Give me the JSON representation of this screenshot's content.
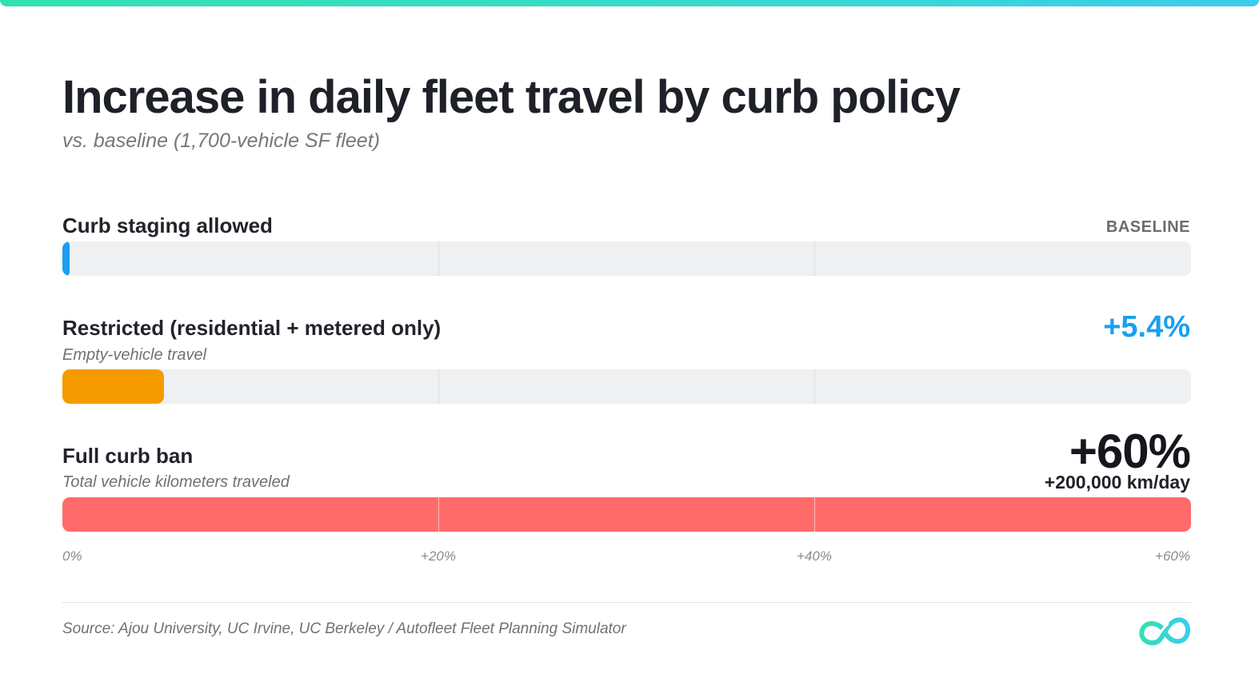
{
  "title": "Increase in daily fleet travel by curb policy",
  "subtitle": "vs. baseline (1,700-vehicle SF fleet)",
  "chart_data": {
    "type": "bar",
    "orientation": "horizontal",
    "title": "Increase in daily fleet travel by curb policy",
    "subtitle": "vs. baseline (1,700-vehicle SF fleet)",
    "xlim": [
      0,
      60
    ],
    "ticks": [
      {
        "value": 0,
        "label": "0%"
      },
      {
        "value": 20,
        "label": "+20%"
      },
      {
        "value": 40,
        "label": "+40%"
      },
      {
        "value": 60,
        "label": "+60%"
      }
    ],
    "rows": [
      {
        "label": "Curb staging allowed",
        "sublabel": "",
        "value": 0,
        "value_label": "BASELINE",
        "extra_label": "",
        "color": "#1a9ff0"
      },
      {
        "label": "Restricted (residential + metered only)",
        "sublabel": "Empty-vehicle travel",
        "value": 5.4,
        "value_label": "+5.4%",
        "extra_label": "",
        "color": "#f59b00"
      },
      {
        "label": "Full curb ban",
        "sublabel": "Total vehicle kilometers traveled",
        "value": 60,
        "value_label": "+60%",
        "extra_label": "+200,000 km/day",
        "color": "#ff6b6b"
      }
    ]
  },
  "footer": {
    "source": "Source: Ajou University, UC Irvine, UC Berkeley / Autofleet Fleet Planning Simulator"
  },
  "colors": {
    "accent_gradient_start": "#33e0b0",
    "accent_gradient_end": "#3ccdee",
    "baseline_blue": "#1a9ff0",
    "restricted_orange": "#f59b00",
    "ban_red": "#ff6b6b",
    "track_gray": "#eff0f2"
  },
  "logo": {
    "icon": "infinity-logo-icon"
  }
}
